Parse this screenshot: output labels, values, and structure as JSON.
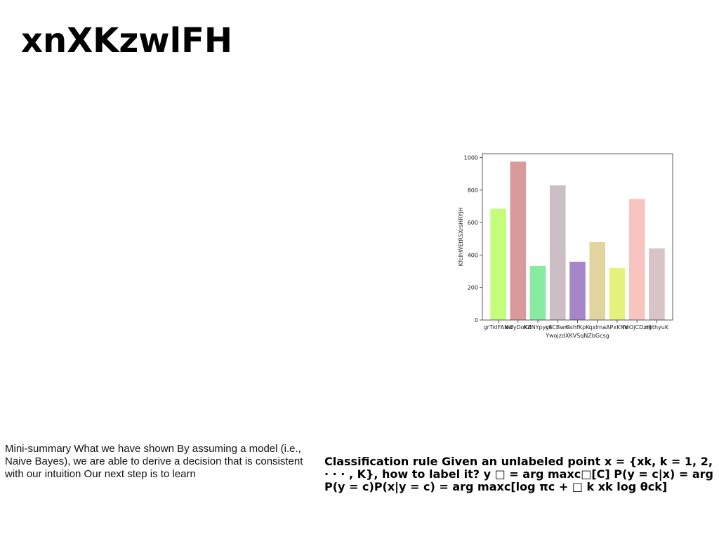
{
  "title": "xnXKzwlFH",
  "chart_data": {
    "type": "bar",
    "categories": [
      "grTkIFANw",
      "wZyDoKd",
      "KZNYpyys",
      "c8CBwm",
      "GshfKpK",
      "qxlma",
      "APxKNV",
      "fwOjCDzhJ",
      "nhthyuK"
    ],
    "values": [
      684,
      975,
      333,
      829,
      359,
      480,
      320,
      745,
      441
    ],
    "colors": [
      "#c4fc7c",
      "#d89a9a",
      "#88eca0",
      "#cbbfc5",
      "#a686c8",
      "#e2d49e",
      "#e6f27e",
      "#f8c4c0",
      "#d8c4c8"
    ],
    "xlabel": "YwojzdXKVSqNZbGcsg",
    "ylabel": "KfclhWEtRSXrsHRYJH",
    "ylim": [
      0,
      1024
    ],
    "yticks": [
      0,
      200,
      400,
      600,
      800,
      1000
    ]
  },
  "left_text": "Mini-summary What we have shown By assuming a model (i.e., Naive Bayes), we are able to derive a decision that is consistent with our intuition Our next step is to learn",
  "right_text": "Classification rule Given an unlabeled point x = {xk, k = 1, 2, · · · , K}, how to label it? y □ = arg maxc□[C] P(y = c|x) = arg P(y = c)P(x|y = c) = arg maxc[log πc + □ k xk log θck]"
}
